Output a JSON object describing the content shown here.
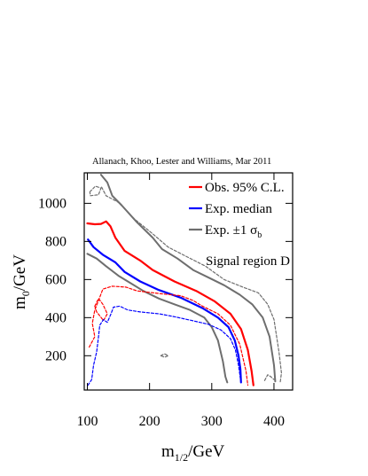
{
  "chart_data": {
    "type": "line",
    "credit": "Allanach, Khoo, Lester and Williams, Mar 2011",
    "xlabel": {
      "base": "m",
      "sub": "1/2",
      "unit": "/GeV"
    },
    "ylabel": {
      "base": "m",
      "sub": "0",
      "unit": "/GeV"
    },
    "xlim": [
      95,
      430
    ],
    "ylim": [
      20,
      1160
    ],
    "xticks": [
      100,
      200,
      300,
      400
    ],
    "yticks": [
      200,
      400,
      600,
      800,
      1000
    ],
    "annotation": "Signal region D",
    "legend_position": "top-right",
    "legend": [
      {
        "label": "Obs. 95% C.L.",
        "color": "#ff0000"
      },
      {
        "label": "Exp. median",
        "color": "#0000ff"
      },
      {
        "label_parts": [
          "Exp. ±1 σ",
          "b"
        ],
        "color": "#6e6e6e"
      }
    ],
    "series": [
      {
        "role": "observed",
        "color": "#ff0000",
        "style": "solid",
        "width": 2.2,
        "points": [
          [
            100,
            895
          ],
          [
            112,
            890
          ],
          [
            122,
            892
          ],
          [
            130,
            905
          ],
          [
            137,
            880
          ],
          [
            145,
            820
          ],
          [
            160,
            750
          ],
          [
            185,
            700
          ],
          [
            205,
            650
          ],
          [
            240,
            590
          ],
          [
            275,
            540
          ],
          [
            305,
            485
          ],
          [
            330,
            420
          ],
          [
            347,
            340
          ],
          [
            358,
            230
          ],
          [
            364,
            120
          ],
          [
            367,
            45
          ]
        ]
      },
      {
        "role": "expected",
        "color": "#0000ff",
        "style": "solid",
        "width": 2.2,
        "points": [
          [
            101,
            810
          ],
          [
            110,
            770
          ],
          [
            125,
            730
          ],
          [
            145,
            690
          ],
          [
            160,
            640
          ],
          [
            185,
            590
          ],
          [
            215,
            545
          ],
          [
            250,
            505
          ],
          [
            285,
            450
          ],
          [
            310,
            400
          ],
          [
            327,
            350
          ],
          [
            337,
            280
          ],
          [
            343,
            200
          ],
          [
            346,
            130
          ],
          [
            347,
            60
          ]
        ]
      },
      {
        "role": "sigma-upper",
        "color": "#6e6e6e",
        "style": "solid",
        "width": 2.0,
        "points": [
          [
            122,
            1150
          ],
          [
            132,
            1110
          ],
          [
            140,
            1040
          ],
          [
            155,
            990
          ],
          [
            180,
            900
          ],
          [
            205,
            820
          ],
          [
            220,
            760
          ],
          [
            245,
            710
          ],
          [
            270,
            650
          ],
          [
            295,
            610
          ],
          [
            320,
            570
          ],
          [
            345,
            520
          ],
          [
            365,
            470
          ],
          [
            382,
            400
          ],
          [
            393,
            300
          ],
          [
            400,
            150
          ],
          [
            402,
            65
          ]
        ]
      },
      {
        "role": "sigma-lower",
        "color": "#6e6e6e",
        "style": "solid",
        "width": 2.0,
        "points": [
          [
            100,
            735
          ],
          [
            115,
            710
          ],
          [
            130,
            670
          ],
          [
            150,
            620
          ],
          [
            170,
            580
          ],
          [
            190,
            540
          ],
          [
            215,
            500
          ],
          [
            240,
            470
          ],
          [
            265,
            440
          ],
          [
            288,
            400
          ],
          [
            300,
            350
          ],
          [
            310,
            280
          ],
          [
            318,
            170
          ],
          [
            322,
            90
          ],
          [
            325,
            60
          ]
        ]
      },
      {
        "role": "sigma-upper-outer",
        "color": "#6e6e6e",
        "style": "dashed",
        "width": 1.2,
        "points": [
          [
            123,
            1085
          ],
          [
            130,
            1040
          ],
          [
            150,
            1005
          ],
          [
            175,
            920
          ],
          [
            205,
            840
          ],
          [
            230,
            770
          ],
          [
            260,
            720
          ],
          [
            290,
            670
          ],
          [
            320,
            600
          ],
          [
            350,
            560
          ],
          [
            375,
            530
          ],
          [
            390,
            470
          ],
          [
            400,
            390
          ],
          [
            408,
            220
          ],
          [
            412,
            110
          ],
          [
            410,
            60
          ]
        ]
      },
      {
        "role": "sigma-upper-inner-tail",
        "color": "#6e6e6e",
        "style": "dashed",
        "width": 1.2,
        "points": [
          [
            385,
            70
          ],
          [
            390,
            100
          ],
          [
            395,
            90
          ],
          [
            400,
            75
          ]
        ]
      },
      {
        "role": "sigma-upper-island",
        "color": "#6e6e6e",
        "style": "dashed",
        "width": 1.2,
        "points": [
          [
            104,
            1060
          ],
          [
            113,
            1090
          ],
          [
            122,
            1080
          ],
          [
            118,
            1045
          ],
          [
            105,
            1040
          ],
          [
            104,
            1060
          ]
        ]
      },
      {
        "role": "observed-lowmass-island",
        "color": "#ff0000",
        "style": "dashed",
        "width": 1.2,
        "points": [
          [
            103,
            245
          ],
          [
            112,
            300
          ],
          [
            108,
            370
          ],
          [
            112,
            440
          ],
          [
            118,
            490
          ],
          [
            125,
            550
          ],
          [
            140,
            565
          ],
          [
            162,
            560
          ],
          [
            180,
            540
          ],
          [
            220,
            525
          ],
          [
            250,
            515
          ],
          [
            270,
            490
          ],
          [
            285,
            460
          ],
          [
            310,
            420
          ],
          [
            330,
            360
          ],
          [
            345,
            260
          ],
          [
            355,
            120
          ],
          [
            358,
            45
          ]
        ]
      },
      {
        "role": "observed-lowmass-loop",
        "color": "#ff0000",
        "style": "dashed",
        "width": 1.2,
        "points": [
          [
            112,
            460
          ],
          [
            118,
            500
          ],
          [
            125,
            470
          ],
          [
            132,
            420
          ],
          [
            126,
            385
          ],
          [
            120,
            410
          ],
          [
            115,
            430
          ],
          [
            112,
            460
          ]
        ]
      },
      {
        "role": "expected-lowmass-island",
        "color": "#0000ff",
        "style": "dashed",
        "width": 1.2,
        "points": [
          [
            101,
            45
          ],
          [
            107,
            75
          ],
          [
            110,
            150
          ],
          [
            115,
            220
          ],
          [
            118,
            300
          ],
          [
            120,
            360
          ],
          [
            126,
            390
          ],
          [
            132,
            375
          ],
          [
            138,
            420
          ],
          [
            142,
            455
          ],
          [
            152,
            460
          ],
          [
            165,
            440
          ],
          [
            185,
            430
          ],
          [
            215,
            420
          ],
          [
            240,
            405
          ],
          [
            268,
            385
          ],
          [
            295,
            365
          ],
          [
            315,
            335
          ],
          [
            330,
            290
          ],
          [
            338,
            230
          ],
          [
            343,
            150
          ],
          [
            346,
            80
          ]
        ]
      },
      {
        "role": "grey-small-loop",
        "color": "#6e6e6e",
        "style": "dashed",
        "width": 1.2,
        "points": [
          [
            218,
            200
          ],
          [
            224,
            210
          ],
          [
            230,
            200
          ],
          [
            224,
            192
          ],
          [
            218,
            200
          ]
        ]
      }
    ]
  }
}
